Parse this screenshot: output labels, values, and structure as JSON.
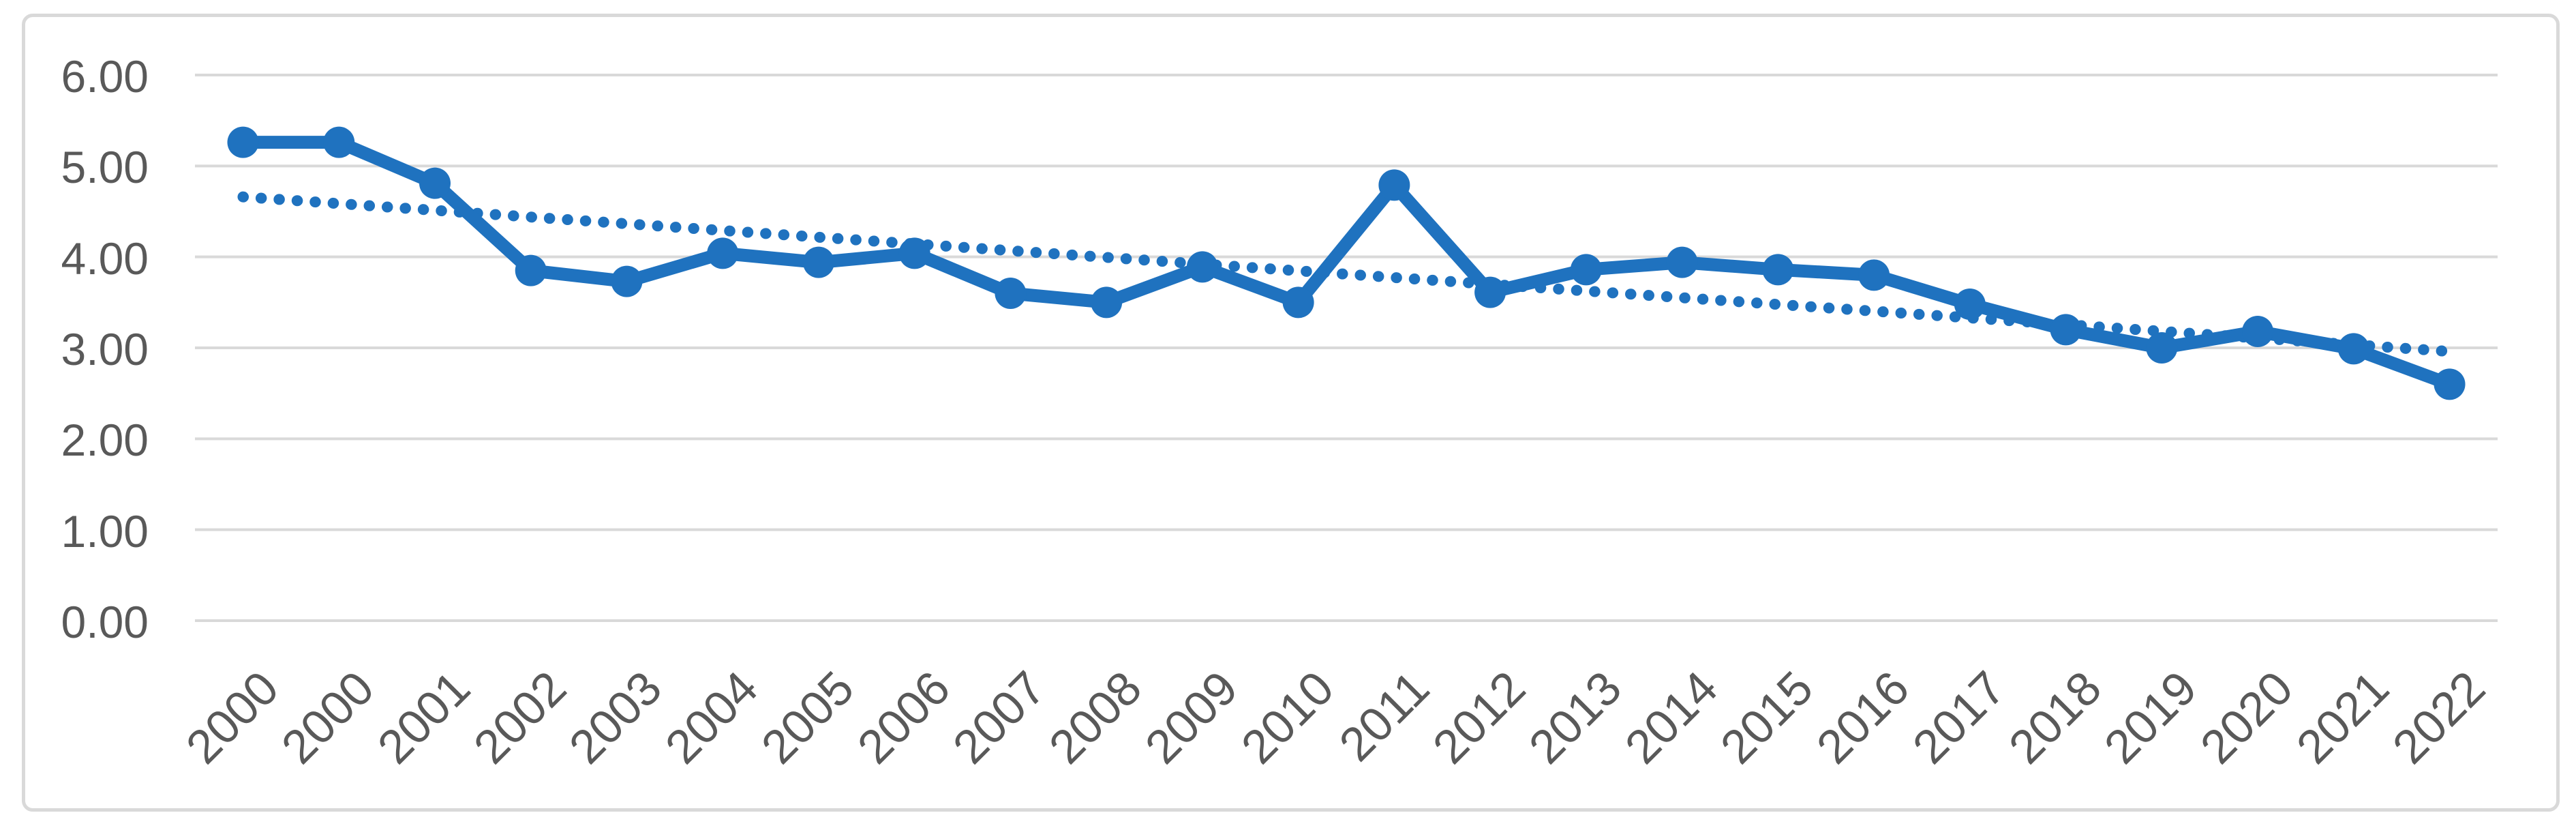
{
  "chart_data": {
    "type": "line",
    "title": "",
    "categories": [
      "2000",
      "2000",
      "2001",
      "2002",
      "2003",
      "2004",
      "2005",
      "2006",
      "2007",
      "2008",
      "2009",
      "2010",
      "2011",
      "2012",
      "2013",
      "2014",
      "2015",
      "2016",
      "2017",
      "2018",
      "2019",
      "2020",
      "2021",
      "2022"
    ],
    "series": [
      {
        "name": "values",
        "values": [
          5.26,
          5.26,
          4.81,
          3.85,
          3.73,
          4.04,
          3.94,
          4.04,
          3.6,
          3.5,
          3.89,
          3.5,
          4.79,
          3.61,
          3.86,
          3.94,
          3.86,
          3.8,
          3.48,
          3.2,
          3.0,
          3.18,
          2.99,
          2.6
        ]
      }
    ],
    "trendline": {
      "type": "linear",
      "start_value": 4.66,
      "end_value": 2.96,
      "style": "dotted"
    },
    "ylim": [
      0,
      6
    ],
    "y_tick_step": 1,
    "y_tick_labels": [
      "0.00",
      "1.00",
      "2.00",
      "3.00",
      "4.00",
      "5.00",
      "6.00"
    ],
    "x_tick_rotation_deg": 45,
    "grid": "horizontal",
    "legend": "none",
    "xlabel": "",
    "ylabel": "",
    "colors": {
      "series": "#1F72BF",
      "gridline": "#D9D9D9",
      "tick_label": "#595959",
      "chart_border": "#D9D9D9",
      "background": "#FFFFFF"
    }
  }
}
